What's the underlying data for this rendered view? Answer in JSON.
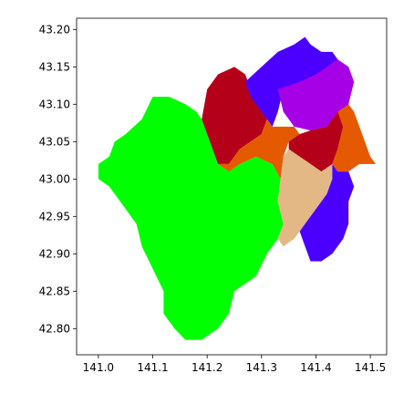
{
  "chart_data": {
    "type": "map",
    "title": "",
    "xlabel": "",
    "ylabel": "",
    "xlim": [
      140.96,
      141.53
    ],
    "ylim": [
      42.765,
      43.215
    ],
    "x_ticks": [
      141.0,
      141.1,
      141.2,
      141.3,
      141.4,
      141.5
    ],
    "y_ticks": [
      42.8,
      42.85,
      42.9,
      42.95,
      43.0,
      43.05,
      43.1,
      43.15,
      43.2
    ],
    "x_tick_labels": [
      "141.0",
      "141.1",
      "141.2",
      "141.3",
      "141.4",
      "141.5"
    ],
    "y_tick_labels": [
      "42.80",
      "42.85",
      "42.90",
      "42.95",
      "43.00",
      "43.05",
      "43.10",
      "43.15",
      "43.20"
    ],
    "grid": false,
    "regions": [
      {
        "id": "southwest-large",
        "color": "#00ff00",
        "coords": [
          [
            141.0,
            43.02
          ],
          [
            141.02,
            43.03
          ],
          [
            141.03,
            43.05
          ],
          [
            141.05,
            43.06
          ],
          [
            141.08,
            43.08
          ],
          [
            141.1,
            43.11
          ],
          [
            141.13,
            43.11
          ],
          [
            141.16,
            43.1
          ],
          [
            141.18,
            43.09
          ],
          [
            141.19,
            43.08
          ],
          [
            141.2,
            43.06
          ],
          [
            141.21,
            43.04
          ],
          [
            141.22,
            43.02
          ],
          [
            141.24,
            43.01
          ],
          [
            141.26,
            43.02
          ],
          [
            141.29,
            43.03
          ],
          [
            141.32,
            43.02
          ],
          [
            141.335,
            43.0
          ],
          [
            141.33,
            42.97
          ],
          [
            141.34,
            42.94
          ],
          [
            141.33,
            42.92
          ],
          [
            141.31,
            42.9
          ],
          [
            141.29,
            42.87
          ],
          [
            141.27,
            42.86
          ],
          [
            141.25,
            42.85
          ],
          [
            141.24,
            42.82
          ],
          [
            141.22,
            42.8
          ],
          [
            141.19,
            42.785
          ],
          [
            141.16,
            42.785
          ],
          [
            141.14,
            42.8
          ],
          [
            141.12,
            42.82
          ],
          [
            141.12,
            42.85
          ],
          [
            141.1,
            42.88
          ],
          [
            141.08,
            42.91
          ],
          [
            141.07,
            42.94
          ],
          [
            141.05,
            42.96
          ],
          [
            141.02,
            42.99
          ],
          [
            141.0,
            43.0
          ]
        ]
      },
      {
        "id": "north-red",
        "color": "#b50019",
        "coords": [
          [
            141.19,
            43.08
          ],
          [
            141.2,
            43.12
          ],
          [
            141.22,
            43.14
          ],
          [
            141.25,
            43.15
          ],
          [
            141.27,
            43.14
          ],
          [
            141.28,
            43.12
          ],
          [
            141.3,
            43.1
          ],
          [
            141.31,
            43.08
          ],
          [
            141.3,
            43.06
          ],
          [
            141.28,
            43.05
          ],
          [
            141.26,
            43.04
          ],
          [
            141.24,
            43.02
          ],
          [
            141.22,
            43.02
          ],
          [
            141.21,
            43.04
          ],
          [
            141.2,
            43.06
          ]
        ]
      },
      {
        "id": "north-blue",
        "color": "#4b00ff",
        "coords": [
          [
            141.27,
            43.13
          ],
          [
            141.3,
            43.15
          ],
          [
            141.33,
            43.17
          ],
          [
            141.36,
            43.18
          ],
          [
            141.38,
            43.19
          ],
          [
            141.39,
            43.18
          ],
          [
            141.41,
            43.17
          ],
          [
            141.43,
            43.17
          ],
          [
            141.44,
            43.16
          ],
          [
            141.43,
            43.14
          ],
          [
            141.4,
            43.13
          ],
          [
            141.37,
            43.13
          ],
          [
            141.34,
            43.12
          ],
          [
            141.33,
            43.09
          ],
          [
            141.32,
            43.07
          ],
          [
            141.3,
            43.09
          ],
          [
            141.28,
            43.11
          ]
        ]
      },
      {
        "id": "north-purple",
        "color": "#a600e6",
        "coords": [
          [
            141.33,
            43.12
          ],
          [
            141.37,
            43.13
          ],
          [
            141.4,
            43.14
          ],
          [
            141.42,
            43.15
          ],
          [
            141.44,
            43.16
          ],
          [
            141.46,
            43.15
          ],
          [
            141.47,
            43.13
          ],
          [
            141.46,
            43.1
          ],
          [
            141.45,
            43.08
          ],
          [
            141.42,
            43.07
          ],
          [
            141.39,
            43.065
          ],
          [
            141.36,
            43.07
          ],
          [
            141.34,
            43.09
          ]
        ]
      },
      {
        "id": "center-orange",
        "color": "#e55a00",
        "coords": [
          [
            141.22,
            43.02
          ],
          [
            141.24,
            43.02
          ],
          [
            141.26,
            43.04
          ],
          [
            141.28,
            43.05
          ],
          [
            141.3,
            43.06
          ],
          [
            141.31,
            43.08
          ],
          [
            141.32,
            43.07
          ],
          [
            141.34,
            43.07
          ],
          [
            141.36,
            43.07
          ],
          [
            141.37,
            43.06
          ],
          [
            141.35,
            43.05
          ],
          [
            141.34,
            43.03
          ],
          [
            141.335,
            43.0
          ],
          [
            141.32,
            43.02
          ],
          [
            141.29,
            43.03
          ],
          [
            141.26,
            43.02
          ],
          [
            141.24,
            43.01
          ]
        ]
      },
      {
        "id": "east-red",
        "color": "#b50019",
        "coords": [
          [
            141.35,
            43.05
          ],
          [
            141.37,
            43.06
          ],
          [
            141.39,
            43.065
          ],
          [
            141.42,
            43.07
          ],
          [
            141.44,
            43.09
          ],
          [
            141.45,
            43.07
          ],
          [
            141.44,
            43.04
          ],
          [
            141.43,
            43.02
          ],
          [
            141.41,
            43.01
          ],
          [
            141.39,
            43.02
          ],
          [
            141.37,
            43.03
          ],
          [
            141.35,
            43.04
          ]
        ]
      },
      {
        "id": "east-orange",
        "color": "#e55a00",
        "coords": [
          [
            141.44,
            43.09
          ],
          [
            141.46,
            43.1
          ],
          [
            141.47,
            43.09
          ],
          [
            141.48,
            43.07
          ],
          [
            141.49,
            43.05
          ],
          [
            141.5,
            43.03
          ],
          [
            141.51,
            43.02
          ],
          [
            141.48,
            43.02
          ],
          [
            141.46,
            43.01
          ],
          [
            141.44,
            43.01
          ],
          [
            141.43,
            43.02
          ],
          [
            141.44,
            43.04
          ],
          [
            141.45,
            43.07
          ]
        ]
      },
      {
        "id": "east-tan",
        "color": "#e3b884",
        "coords": [
          [
            141.34,
            43.03
          ],
          [
            141.35,
            43.04
          ],
          [
            141.37,
            43.03
          ],
          [
            141.39,
            43.02
          ],
          [
            141.41,
            43.01
          ],
          [
            141.43,
            43.02
          ],
          [
            141.43,
            43.0
          ],
          [
            141.42,
            42.98
          ],
          [
            141.4,
            42.96
          ],
          [
            141.38,
            42.94
          ],
          [
            141.36,
            42.92
          ],
          [
            141.34,
            42.91
          ],
          [
            141.33,
            42.92
          ],
          [
            141.34,
            42.94
          ],
          [
            141.33,
            42.97
          ],
          [
            141.335,
            43.0
          ]
        ]
      },
      {
        "id": "southeast-blue",
        "color": "#4b00ff",
        "coords": [
          [
            141.43,
            43.02
          ],
          [
            141.44,
            43.01
          ],
          [
            141.46,
            43.01
          ],
          [
            141.47,
            42.99
          ],
          [
            141.46,
            42.97
          ],
          [
            141.46,
            42.94
          ],
          [
            141.45,
            42.92
          ],
          [
            141.43,
            42.9
          ],
          [
            141.41,
            42.89
          ],
          [
            141.39,
            42.89
          ],
          [
            141.38,
            42.91
          ],
          [
            141.37,
            42.93
          ],
          [
            141.38,
            42.94
          ],
          [
            141.4,
            42.96
          ],
          [
            141.42,
            42.98
          ],
          [
            141.43,
            43.0
          ]
        ]
      }
    ]
  }
}
